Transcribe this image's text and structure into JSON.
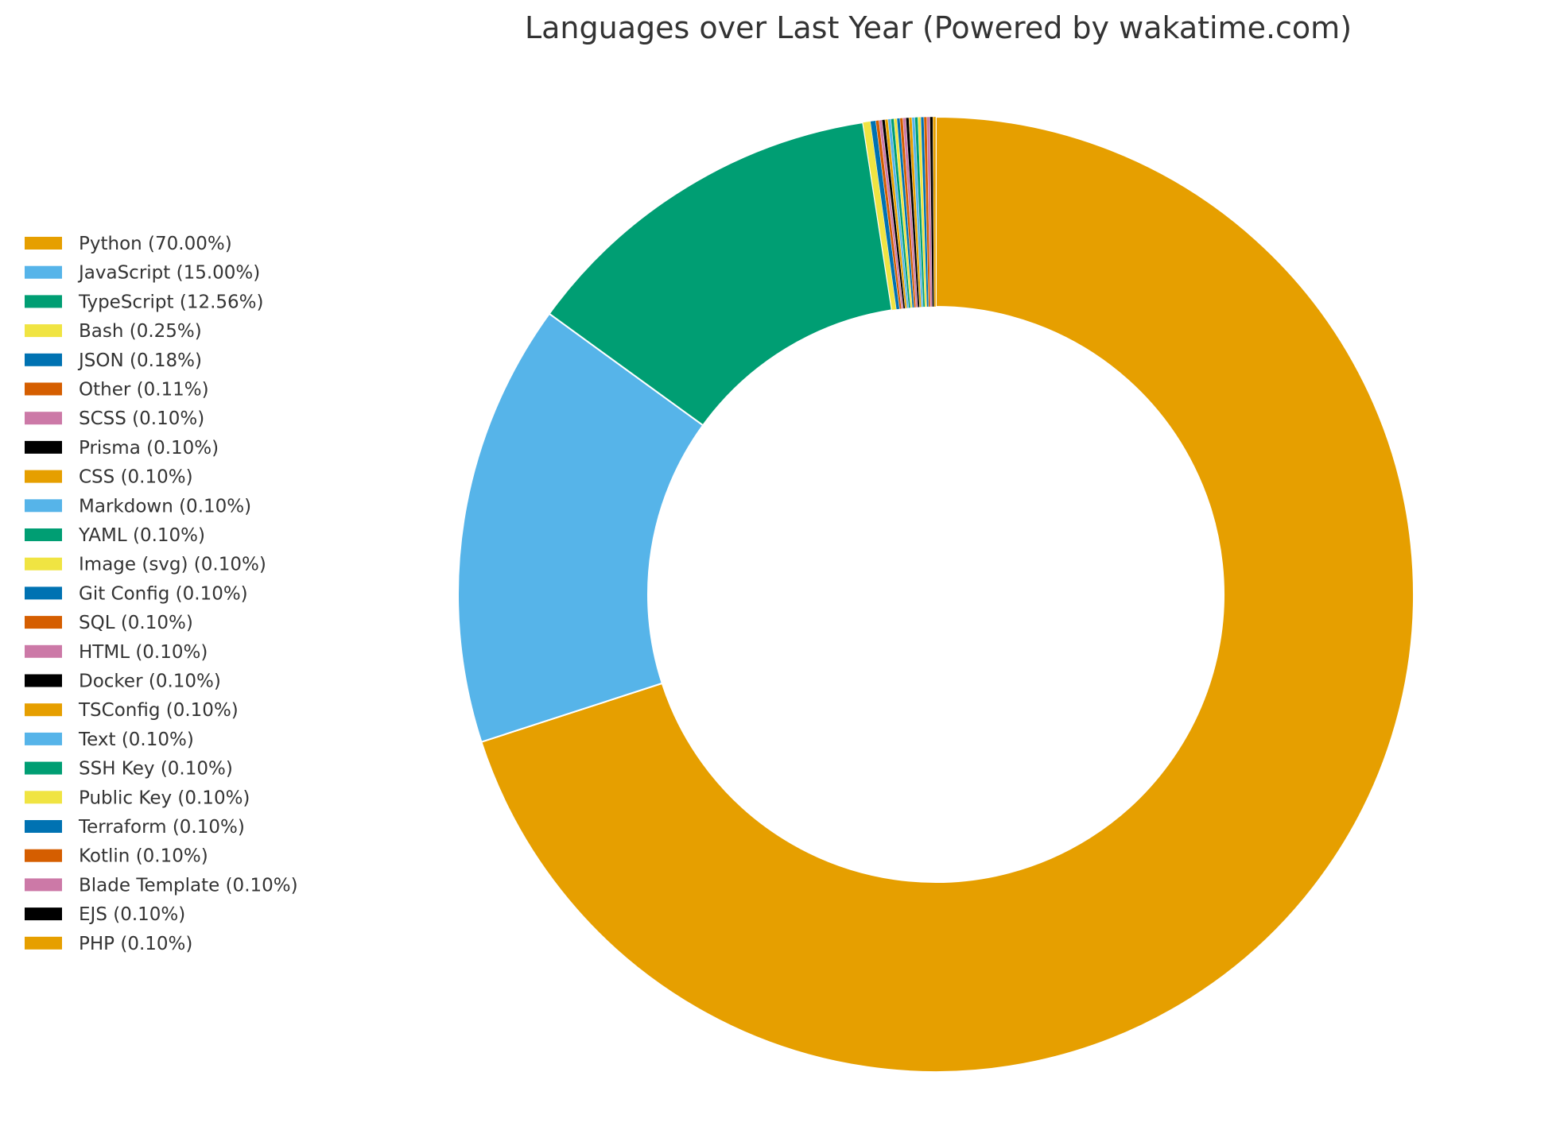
{
  "chart_data": {
    "type": "pie",
    "style": "donut",
    "title": "Languages over Last Year (Powered by wakatime.com)",
    "legend_position": "left",
    "start_angle": "top",
    "direction": "clockwise",
    "slices": [
      {
        "label": "Python",
        "legend": "Python (70.00%)",
        "value": 70.0,
        "color": "#E69F00"
      },
      {
        "label": "JavaScript",
        "legend": "JavaScript (15.00%)",
        "value": 15.0,
        "color": "#56B4E9"
      },
      {
        "label": "TypeScript",
        "legend": "TypeScript (12.56%)",
        "value": 12.56,
        "color": "#009E73"
      },
      {
        "label": "Bash",
        "legend": "Bash (0.25%)",
        "value": 0.25,
        "color": "#F0E442"
      },
      {
        "label": "JSON",
        "legend": "JSON (0.18%)",
        "value": 0.18,
        "color": "#0072B2"
      },
      {
        "label": "Other",
        "legend": "Other (0.11%)",
        "value": 0.11,
        "color": "#D55E00"
      },
      {
        "label": "SCSS",
        "legend": "SCSS (0.10%)",
        "value": 0.1,
        "color": "#CC79A7"
      },
      {
        "label": "Prisma",
        "legend": "Prisma (0.10%)",
        "value": 0.1,
        "color": "#000000"
      },
      {
        "label": "CSS",
        "legend": "CSS (0.10%)",
        "value": 0.1,
        "color": "#E69F00"
      },
      {
        "label": "Markdown",
        "legend": "Markdown (0.10%)",
        "value": 0.1,
        "color": "#56B4E9"
      },
      {
        "label": "YAML",
        "legend": "YAML (0.10%)",
        "value": 0.1,
        "color": "#009E73"
      },
      {
        "label": "Image (svg)",
        "legend": "Image (svg) (0.10%)",
        "value": 0.1,
        "color": "#F0E442"
      },
      {
        "label": "Git Config",
        "legend": "Git Config (0.10%)",
        "value": 0.1,
        "color": "#0072B2"
      },
      {
        "label": "SQL",
        "legend": "SQL (0.10%)",
        "value": 0.1,
        "color": "#D55E00"
      },
      {
        "label": "HTML",
        "legend": "HTML (0.10%)",
        "value": 0.1,
        "color": "#CC79A7"
      },
      {
        "label": "Docker",
        "legend": "Docker (0.10%)",
        "value": 0.1,
        "color": "#000000"
      },
      {
        "label": "TSConfig",
        "legend": "TSConfig (0.10%)",
        "value": 0.1,
        "color": "#E69F00"
      },
      {
        "label": "Text",
        "legend": "Text (0.10%)",
        "value": 0.1,
        "color": "#56B4E9"
      },
      {
        "label": "SSH Key",
        "legend": "SSH Key (0.10%)",
        "value": 0.1,
        "color": "#009E73"
      },
      {
        "label": "Public Key",
        "legend": "Public Key (0.10%)",
        "value": 0.1,
        "color": "#F0E442"
      },
      {
        "label": "Terraform",
        "legend": "Terraform (0.10%)",
        "value": 0.1,
        "color": "#0072B2"
      },
      {
        "label": "Kotlin",
        "legend": "Kotlin (0.10%)",
        "value": 0.1,
        "color": "#D55E00"
      },
      {
        "label": "Blade Template",
        "legend": "Blade Template (0.10%)",
        "value": 0.1,
        "color": "#CC79A7"
      },
      {
        "label": "EJS",
        "legend": "EJS (0.10%)",
        "value": 0.1,
        "color": "#000000"
      },
      {
        "label": "PHP",
        "legend": "PHP (0.10%)",
        "value": 0.1,
        "color": "#E69F00"
      }
    ]
  }
}
